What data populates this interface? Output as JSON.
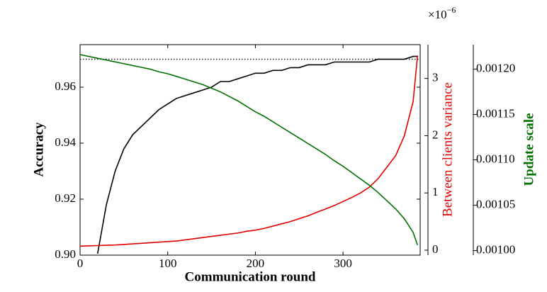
{
  "chart_data": {
    "type": "line",
    "x_label": "Communication round",
    "y_label": "Accuracy",
    "y2_label": "Between clients variance",
    "y3_label": "Update scale",
    "y2_offset_base": "×10",
    "y2_offset_exp": "−6",
    "y2_label_color": "#e00000",
    "y3_label_color": "#007000",
    "xlim": [
      0,
      388
    ],
    "xticks": [
      0,
      100,
      200,
      300
    ],
    "ylim": [
      0.9,
      0.9752
    ],
    "yticks": [
      {
        "value": 0.9,
        "label": "0.90"
      },
      0.92,
      0.94,
      0.96
    ],
    "y2lim": [
      -0.087,
      3.59
    ],
    "y2ticks": [
      0,
      1,
      2,
      3
    ],
    "y3lim": [
      0.000995,
      0.001227
    ],
    "y3ticks": [
      {
        "value": 0.001,
        "label": "0.00100"
      },
      {
        "value": 0.00105,
        "label": "0.00105"
      },
      {
        "value": 0.0011,
        "label": "0.00110"
      },
      {
        "value": 0.00115,
        "label": "0.00115"
      },
      {
        "value": 0.0012,
        "label": "0.00120"
      }
    ],
    "reference_line": {
      "value": 0.97,
      "color": "#000000",
      "style": "dotted"
    },
    "x": [
      0,
      10,
      20,
      30,
      40,
      50,
      60,
      70,
      80,
      90,
      100,
      110,
      120,
      130,
      140,
      150,
      160,
      170,
      180,
      190,
      200,
      210,
      220,
      230,
      240,
      250,
      260,
      270,
      280,
      290,
      300,
      310,
      320,
      330,
      340,
      350,
      360,
      370,
      380,
      385
    ],
    "series": [
      {
        "color": "#000000",
        "axis": "y",
        "values": [
          null,
          null,
          0.9005,
          0.918,
          0.93,
          0.938,
          0.943,
          0.946,
          0.949,
          0.952,
          0.954,
          0.956,
          0.957,
          0.958,
          0.959,
          0.96,
          0.962,
          0.962,
          0.963,
          0.964,
          0.965,
          0.965,
          0.966,
          0.966,
          0.967,
          0.967,
          0.968,
          0.968,
          0.968,
          0.969,
          0.969,
          0.969,
          0.969,
          0.969,
          0.97,
          0.97,
          0.97,
          0.97,
          0.971,
          0.971
        ]
      },
      {
        "color": "#e00000",
        "axis": "y2",
        "values": [
          0.07,
          0.075,
          0.08,
          0.085,
          0.09,
          0.1,
          0.11,
          0.12,
          0.13,
          0.14,
          0.15,
          0.16,
          0.18,
          0.2,
          0.22,
          0.24,
          0.26,
          0.28,
          0.3,
          0.33,
          0.35,
          0.38,
          0.42,
          0.46,
          0.5,
          0.55,
          0.6,
          0.66,
          0.72,
          0.78,
          0.85,
          0.92,
          1.0,
          1.1,
          1.25,
          1.45,
          1.65,
          2.0,
          2.6,
          3.4
        ]
      },
      {
        "color": "#007000",
        "axis": "y3",
        "values": [
          0.001216,
          0.001214,
          0.001212,
          0.00121,
          0.001208,
          0.001206,
          0.001204,
          0.001202,
          0.0012,
          0.001197,
          0.001195,
          0.001192,
          0.001189,
          0.001186,
          0.001183,
          0.001179,
          0.001175,
          0.00117,
          0.001165,
          0.001159,
          0.001153,
          0.001148,
          0.001142,
          0.001136,
          0.00113,
          0.001124,
          0.001118,
          0.001112,
          0.001106,
          0.001099,
          0.001093,
          0.001086,
          0.001079,
          0.001072,
          0.001064,
          0.001055,
          0.001046,
          0.001035,
          0.00102,
          0.001006
        ]
      }
    ]
  }
}
